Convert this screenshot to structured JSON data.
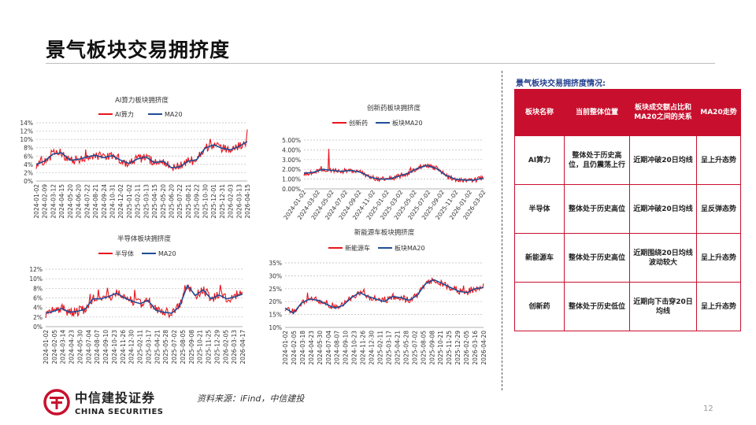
{
  "page": {
    "title": "景气板块交易拥挤度",
    "source": "资料来源：iFind，中信建投",
    "page_number": "12",
    "logo": {
      "cn": "中信建投证券",
      "en": "CHINA SECURITIES",
      "color": "#c8102e"
    }
  },
  "colors": {
    "series_main": "#e8141c",
    "series_ma": "#1f4e96",
    "table_header": "#c8102e"
  },
  "chart_data": [
    {
      "type": "line",
      "title": "AI算力板块拥挤度",
      "series_names": [
        "AI算力",
        "MA20"
      ],
      "x_ticks": [
        "2024-01-02",
        "2024-02-09",
        "2024-03-12",
        "2024-04-15",
        "2024-05-20",
        "2024-06-20",
        "2024-07-22",
        "2024-08-21",
        "2024-09-24",
        "2024-10-31",
        "2024-12-02",
        "2025-01-02",
        "2025-02-11",
        "2025-03-13",
        "2025-04-15",
        "2025-05-20",
        "2025-06-20",
        "2025-07-22",
        "2025-08-21",
        "2025-09-22",
        "2025-10-30",
        "2025-12-01",
        "2025-12-31",
        "2026-02-03",
        "2026-03-13",
        "2026-04-15"
      ],
      "y_ticks": [
        "0%",
        "2%",
        "4%",
        "6%",
        "8%",
        "10%",
        "12%",
        "14%"
      ],
      "ylim": [
        0,
        14
      ],
      "ma_anchors": [
        4.0,
        4.8,
        6.5,
        6.8,
        5.0,
        5.2,
        5.8,
        6.2,
        5.6,
        6.1,
        5.0,
        4.2,
        5.3,
        5.8,
        4.4,
        4.8,
        3.2,
        3.4,
        4.8,
        5.1,
        7.9,
        8.7,
        7.9,
        7.5,
        8.3,
        9.5
      ],
      "noise": 1.1,
      "end_spike": 12.4
    },
    {
      "type": "line",
      "title": "创新药板块拥挤度",
      "series_names": [
        "创新药",
        "板块MA20"
      ],
      "x_ticks": [
        "2024-01-02",
        "2024-03-02",
        "2024-05-02",
        "2024-07-02",
        "2024-09-02",
        "2024-11-02",
        "2025-01-02",
        "2025-03-02",
        "2025-05-02",
        "2025-07-02",
        "2025-09-02",
        "2025-11-02",
        "2026-01-02",
        "2026-03-02"
      ],
      "y_ticks": [
        "0.00%",
        "1.00%",
        "2.00%",
        "3.00%",
        "4.00%",
        "5.00%"
      ],
      "ylim": [
        0,
        5
      ],
      "ma_anchors": [
        1.6,
        1.7,
        2.0,
        1.9,
        1.8,
        1.9,
        1.7,
        1.2,
        1.0,
        1.0,
        1.3,
        1.6,
        2.1,
        2.4,
        2.1,
        1.4,
        1.0,
        0.9,
        0.9,
        1.1
      ],
      "noise": 0.25,
      "peak_spike": 4.1
    },
    {
      "type": "line",
      "title": "半导体板块拥挤度",
      "series_names": [
        "半导体",
        "MA20"
      ],
      "x_ticks": [
        "2024-01-02",
        "2024-02-05",
        "2024-03-14",
        "2024-04-23",
        "2024-05-30",
        "2024-07-04",
        "2024-08-07",
        "2024-09-10",
        "2024-10-23",
        "2024-11-26",
        "2024-12-30",
        "2025-02-11",
        "2025-03-17",
        "2025-04-21",
        "2025-05-28",
        "2025-07-02",
        "2025-08-05",
        "2025-09-08",
        "2025-10-21",
        "2025-11-25",
        "2025-12-29",
        "2026-02-05",
        "2026-03-13",
        "2026-04-17"
      ],
      "y_ticks": [
        "0%",
        "2%",
        "4%",
        "6%",
        "8%",
        "10%",
        "12%"
      ],
      "ylim": [
        0,
        12
      ],
      "ma_anchors": [
        2.8,
        3.2,
        3.8,
        3.0,
        3.2,
        3.6,
        5.8,
        5.8,
        6.3,
        7.0,
        6.0,
        5.3,
        4.8,
        5.5,
        3.4,
        3.0,
        2.8,
        4.2,
        8.6,
        6.5,
        7.7,
        5.8,
        6.6,
        5.8,
        6.2,
        6.8
      ],
      "noise": 1.0,
      "end_spike": 7.0
    },
    {
      "type": "line",
      "title": "新能源车板块拥挤度",
      "series_names": [
        "新能源车",
        "板块MA20"
      ],
      "x_ticks": [
        "2024-01-02",
        "2024-02-05",
        "2024-03-18",
        "2024-04-23",
        "2024-05-30",
        "2024-07-04",
        "2024-08-07",
        "2024-09-10",
        "2024-10-23",
        "2024-11-26",
        "2024-12-30",
        "2025-02-11",
        "2025-03-17",
        "2025-04-21",
        "2025-05-28",
        "2025-07-02",
        "2025-08-05",
        "2025-09-08",
        "2025-10-21",
        "2025-11-25",
        "2025-12-29",
        "2026-02-05",
        "2026-03-16",
        "2026-04-20"
      ],
      "y_ticks": [
        "10%",
        "15%",
        "20%",
        "25%",
        "30%",
        "35%"
      ],
      "ylim": [
        10,
        35
      ],
      "ma_anchors": [
        17.5,
        15.5,
        19.5,
        21.0,
        20.5,
        19.0,
        17.5,
        18.5,
        21.5,
        23.5,
        22.0,
        21.0,
        20.0,
        22.0,
        21.5,
        20.5,
        22.5,
        27.0,
        28.5,
        27.0,
        25.5,
        24.0,
        23.5,
        25.0,
        25.5
      ],
      "noise": 1.2,
      "end_spike": 27.0
    }
  ],
  "table": {
    "title": "景气板块交易拥挤度情况:",
    "headers": [
      "板块名称",
      "当前整体位置",
      "板块成交额占比和MA20之间的关系",
      "MA20走势"
    ],
    "rows": [
      [
        "AI算力",
        "整体处于历史高位，且仍震荡上行",
        "近期冲破20日均线",
        "呈上升态势"
      ],
      [
        "半导体",
        "整体处于历史高位",
        "近期冲破20日均线",
        "呈反弹态势"
      ],
      [
        "新能源车",
        "整体处于历史高位",
        "近期围绕20日均线波动较大",
        "呈上升态势"
      ],
      [
        "创新药",
        "整体处于历史低位",
        "近期向下击穿20日均线",
        "呈上升态势"
      ]
    ]
  }
}
